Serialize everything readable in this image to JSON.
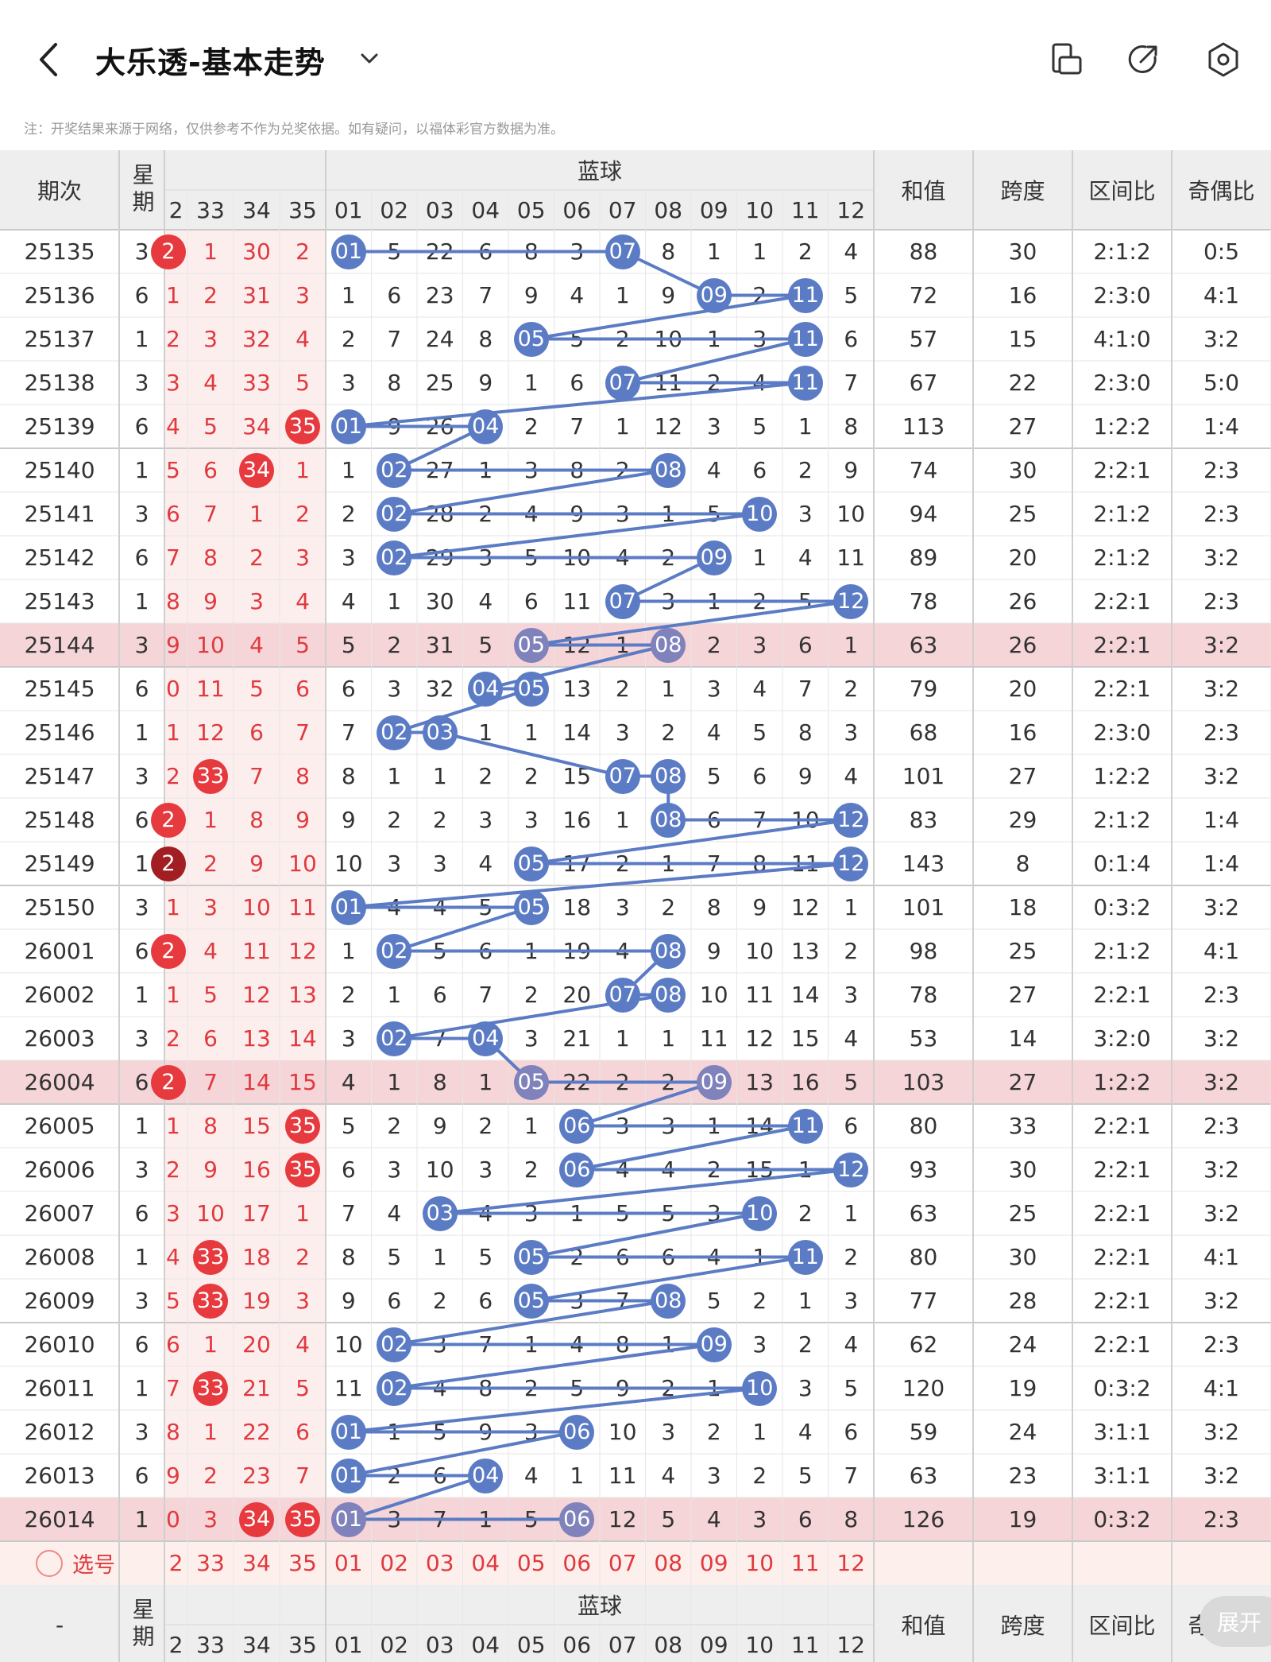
{
  "header": {
    "title": "大乐透-基本走势",
    "notice": "注：开奖结果来源于网络，仅供参考不作为兑奖依据。如有疑问，以福体彩官方数据为准。"
  },
  "columns": {
    "period": "期次",
    "week": "星期",
    "blue_group": "蓝球",
    "sum": "和值",
    "span": "跨度",
    "zone_ratio": "区间比",
    "odd_even": "奇偶比",
    "red_numbers": [
      "2",
      "33",
      "34",
      "35"
    ],
    "blue_numbers": [
      "01",
      "02",
      "03",
      "04",
      "05",
      "06",
      "07",
      "08",
      "09",
      "10",
      "11",
      "12"
    ]
  },
  "rows": [
    {
      "period": "25135",
      "week": "3",
      "red": [
        "2",
        "1",
        "30",
        "2"
      ],
      "redHit": [
        0
      ],
      "blue": [
        "01",
        "5",
        "22",
        "6",
        "8",
        "3",
        "07",
        "8",
        "1",
        "1",
        "2",
        "4"
      ],
      "blueHit": [
        0,
        6
      ],
      "sum": "88",
      "span": "30",
      "zone": "2:1:2",
      "oe": "0:5"
    },
    {
      "period": "25136",
      "week": "6",
      "red": [
        "1",
        "2",
        "31",
        "3"
      ],
      "redHit": [],
      "blue": [
        "1",
        "6",
        "23",
        "7",
        "9",
        "4",
        "1",
        "9",
        "09",
        "2",
        "11",
        "5"
      ],
      "blueHit": [
        8,
        10
      ],
      "sum": "72",
      "span": "16",
      "zone": "2:3:0",
      "oe": "4:1"
    },
    {
      "period": "25137",
      "week": "1",
      "red": [
        "2",
        "3",
        "32",
        "4"
      ],
      "redHit": [],
      "blue": [
        "2",
        "7",
        "24",
        "8",
        "05",
        "5",
        "2",
        "10",
        "1",
        "3",
        "11",
        "6"
      ],
      "blueHit": [
        4,
        10
      ],
      "sum": "57",
      "span": "15",
      "zone": "4:1:0",
      "oe": "3:2"
    },
    {
      "period": "25138",
      "week": "3",
      "red": [
        "3",
        "4",
        "33",
        "5"
      ],
      "redHit": [],
      "blue": [
        "3",
        "8",
        "25",
        "9",
        "1",
        "6",
        "07",
        "11",
        "2",
        "4",
        "11",
        "7"
      ],
      "blueHit": [
        6,
        10
      ],
      "sum": "67",
      "span": "22",
      "zone": "2:3:0",
      "oe": "5:0"
    },
    {
      "period": "25139",
      "week": "6",
      "red": [
        "4",
        "5",
        "34",
        "35"
      ],
      "redHit": [
        3
      ],
      "blue": [
        "01",
        "9",
        "26",
        "04",
        "2",
        "7",
        "1",
        "12",
        "3",
        "5",
        "1",
        "8"
      ],
      "blueHit": [
        0,
        3
      ],
      "sum": "113",
      "span": "27",
      "zone": "1:2:2",
      "oe": "1:4"
    },
    {
      "period": "25140",
      "week": "1",
      "red": [
        "5",
        "6",
        "34",
        "1"
      ],
      "redHit": [
        2
      ],
      "blue": [
        "1",
        "02",
        "27",
        "1",
        "3",
        "8",
        "2",
        "08",
        "4",
        "6",
        "2",
        "9"
      ],
      "blueHit": [
        1,
        7
      ],
      "sum": "74",
      "span": "30",
      "zone": "2:2:1",
      "oe": "2:3"
    },
    {
      "period": "25141",
      "week": "3",
      "red": [
        "6",
        "7",
        "1",
        "2"
      ],
      "redHit": [],
      "blue": [
        "2",
        "02",
        "28",
        "2",
        "4",
        "9",
        "3",
        "1",
        "5",
        "10",
        "3",
        "10"
      ],
      "blueHit": [
        1,
        9
      ],
      "sum": "94",
      "span": "25",
      "zone": "2:1:2",
      "oe": "2:3"
    },
    {
      "period": "25142",
      "week": "6",
      "red": [
        "7",
        "8",
        "2",
        "3"
      ],
      "redHit": [],
      "blue": [
        "3",
        "02",
        "29",
        "3",
        "5",
        "10",
        "4",
        "2",
        "09",
        "1",
        "4",
        "11"
      ],
      "blueHit": [
        1,
        8
      ],
      "sum": "89",
      "span": "20",
      "zone": "2:1:2",
      "oe": "3:2"
    },
    {
      "period": "25143",
      "week": "1",
      "red": [
        "8",
        "9",
        "3",
        "4"
      ],
      "redHit": [],
      "blue": [
        "4",
        "1",
        "30",
        "4",
        "6",
        "11",
        "07",
        "3",
        "1",
        "2",
        "5",
        "12"
      ],
      "blueHit": [
        6,
        11
      ],
      "sum": "78",
      "span": "26",
      "zone": "2:2:1",
      "oe": "2:3"
    },
    {
      "period": "25144",
      "week": "3",
      "red": [
        "9",
        "10",
        "4",
        "5"
      ],
      "redHit": [],
      "blue": [
        "5",
        "2",
        "31",
        "5",
        "05",
        "12",
        "1",
        "08",
        "2",
        "3",
        "6",
        "1"
      ],
      "blueHit": [
        4,
        7
      ],
      "sum": "63",
      "span": "26",
      "zone": "2:2:1",
      "oe": "3:2",
      "hl": true
    },
    {
      "period": "25145",
      "week": "6",
      "red": [
        "0",
        "11",
        "5",
        "6"
      ],
      "redHit": [],
      "blue": [
        "6",
        "3",
        "32",
        "04",
        "05",
        "13",
        "2",
        "1",
        "3",
        "4",
        "7",
        "2"
      ],
      "blueHit": [
        3,
        4
      ],
      "sum": "79",
      "span": "20",
      "zone": "2:2:1",
      "oe": "3:2"
    },
    {
      "period": "25146",
      "week": "1",
      "red": [
        "1",
        "12",
        "6",
        "7"
      ],
      "redHit": [],
      "blue": [
        "7",
        "02",
        "03",
        "1",
        "1",
        "14",
        "3",
        "2",
        "4",
        "5",
        "8",
        "3"
      ],
      "blueHit": [
        1,
        2
      ],
      "sum": "68",
      "span": "16",
      "zone": "2:3:0",
      "oe": "2:3"
    },
    {
      "period": "25147",
      "week": "3",
      "red": [
        "2",
        "33",
        "7",
        "8"
      ],
      "redHit": [
        1
      ],
      "blue": [
        "8",
        "1",
        "1",
        "2",
        "2",
        "15",
        "07",
        "08",
        "5",
        "6",
        "9",
        "4"
      ],
      "blueHit": [
        6,
        7
      ],
      "sum": "101",
      "span": "27",
      "zone": "1:2:2",
      "oe": "3:2"
    },
    {
      "period": "25148",
      "week": "6",
      "red": [
        "2",
        "1",
        "8",
        "9"
      ],
      "redHit": [
        0
      ],
      "blue": [
        "9",
        "2",
        "2",
        "3",
        "3",
        "16",
        "1",
        "08",
        "6",
        "7",
        "10",
        "12"
      ],
      "blueHit": [
        7,
        11
      ],
      "sum": "83",
      "span": "29",
      "zone": "2:1:2",
      "oe": "1:4"
    },
    {
      "period": "25149",
      "week": "1",
      "red": [
        "2",
        "2",
        "9",
        "10"
      ],
      "redHit": [
        0
      ],
      "redDark": true,
      "blue": [
        "10",
        "3",
        "3",
        "4",
        "05",
        "17",
        "2",
        "1",
        "7",
        "8",
        "11",
        "12"
      ],
      "blueHit": [
        4,
        11
      ],
      "sum": "143",
      "span": "8",
      "zone": "0:1:4",
      "oe": "1:4"
    },
    {
      "period": "25150",
      "week": "3",
      "red": [
        "1",
        "3",
        "10",
        "11"
      ],
      "redHit": [],
      "blue": [
        "01",
        "4",
        "4",
        "5",
        "05",
        "18",
        "3",
        "2",
        "8",
        "9",
        "12",
        "1"
      ],
      "blueHit": [
        0,
        4
      ],
      "sum": "101",
      "span": "18",
      "zone": "0:3:2",
      "oe": "3:2"
    },
    {
      "period": "26001",
      "week": "6",
      "red": [
        "2",
        "4",
        "11",
        "12"
      ],
      "redHit": [
        0
      ],
      "blue": [
        "1",
        "02",
        "5",
        "6",
        "1",
        "19",
        "4",
        "08",
        "9",
        "10",
        "13",
        "2"
      ],
      "blueHit": [
        1,
        7
      ],
      "sum": "98",
      "span": "25",
      "zone": "2:1:2",
      "oe": "4:1"
    },
    {
      "period": "26002",
      "week": "1",
      "red": [
        "1",
        "5",
        "12",
        "13"
      ],
      "redHit": [],
      "blue": [
        "2",
        "1",
        "6",
        "7",
        "2",
        "20",
        "07",
        "08",
        "10",
        "11",
        "14",
        "3"
      ],
      "blueHit": [
        6,
        7
      ],
      "sum": "78",
      "span": "27",
      "zone": "2:2:1",
      "oe": "2:3"
    },
    {
      "period": "26003",
      "week": "3",
      "red": [
        "2",
        "6",
        "13",
        "14"
      ],
      "redHit": [],
      "blue": [
        "3",
        "02",
        "7",
        "04",
        "3",
        "21",
        "1",
        "1",
        "11",
        "12",
        "15",
        "4"
      ],
      "blueHit": [
        1,
        3
      ],
      "sum": "53",
      "span": "14",
      "zone": "3:2:0",
      "oe": "3:2"
    },
    {
      "period": "26004",
      "week": "6",
      "red": [
        "2",
        "7",
        "14",
        "15"
      ],
      "redHit": [
        0
      ],
      "blue": [
        "4",
        "1",
        "8",
        "1",
        "05",
        "22",
        "2",
        "2",
        "09",
        "13",
        "16",
        "5"
      ],
      "blueHit": [
        4,
        8
      ],
      "sum": "103",
      "span": "27",
      "zone": "1:2:2",
      "oe": "3:2",
      "hl": true
    },
    {
      "period": "26005",
      "week": "1",
      "red": [
        "1",
        "8",
        "15",
        "35"
      ],
      "redHit": [
        3
      ],
      "blue": [
        "5",
        "2",
        "9",
        "2",
        "1",
        "06",
        "3",
        "3",
        "1",
        "14",
        "11",
        "6"
      ],
      "blueHit": [
        5,
        10
      ],
      "sum": "80",
      "span": "33",
      "zone": "2:2:1",
      "oe": "2:3"
    },
    {
      "period": "26006",
      "week": "3",
      "red": [
        "2",
        "9",
        "16",
        "35"
      ],
      "redHit": [
        3
      ],
      "blue": [
        "6",
        "3",
        "10",
        "3",
        "2",
        "06",
        "4",
        "4",
        "2",
        "15",
        "1",
        "12"
      ],
      "blueHit": [
        5,
        11
      ],
      "sum": "93",
      "span": "30",
      "zone": "2:2:1",
      "oe": "3:2"
    },
    {
      "period": "26007",
      "week": "6",
      "red": [
        "3",
        "10",
        "17",
        "1"
      ],
      "redHit": [],
      "blue": [
        "7",
        "4",
        "03",
        "4",
        "3",
        "1",
        "5",
        "5",
        "3",
        "10",
        "2",
        "1"
      ],
      "blueHit": [
        2,
        9
      ],
      "sum": "63",
      "span": "25",
      "zone": "2:2:1",
      "oe": "3:2"
    },
    {
      "period": "26008",
      "week": "1",
      "red": [
        "4",
        "33",
        "18",
        "2"
      ],
      "redHit": [
        1
      ],
      "blue": [
        "8",
        "5",
        "1",
        "5",
        "05",
        "2",
        "6",
        "6",
        "4",
        "1",
        "11",
        "2"
      ],
      "blueHit": [
        4,
        10
      ],
      "sum": "80",
      "span": "30",
      "zone": "2:2:1",
      "oe": "4:1"
    },
    {
      "period": "26009",
      "week": "3",
      "red": [
        "5",
        "33",
        "19",
        "3"
      ],
      "redHit": [
        1
      ],
      "blue": [
        "9",
        "6",
        "2",
        "6",
        "05",
        "3",
        "7",
        "08",
        "5",
        "2",
        "1",
        "3"
      ],
      "blueHit": [
        4,
        7
      ],
      "sum": "77",
      "span": "28",
      "zone": "2:2:1",
      "oe": "3:2"
    },
    {
      "period": "26010",
      "week": "6",
      "red": [
        "6",
        "1",
        "20",
        "4"
      ],
      "redHit": [],
      "blue": [
        "10",
        "02",
        "3",
        "7",
        "1",
        "4",
        "8",
        "1",
        "09",
        "3",
        "2",
        "4"
      ],
      "blueHit": [
        1,
        8
      ],
      "sum": "62",
      "span": "24",
      "zone": "2:2:1",
      "oe": "2:3"
    },
    {
      "period": "26011",
      "week": "1",
      "red": [
        "7",
        "33",
        "21",
        "5"
      ],
      "redHit": [
        1
      ],
      "blue": [
        "11",
        "02",
        "4",
        "8",
        "2",
        "5",
        "9",
        "2",
        "1",
        "10",
        "3",
        "5"
      ],
      "blueHit": [
        1,
        9
      ],
      "sum": "120",
      "span": "19",
      "zone": "0:3:2",
      "oe": "4:1"
    },
    {
      "period": "26012",
      "week": "3",
      "red": [
        "8",
        "1",
        "22",
        "6"
      ],
      "redHit": [],
      "blue": [
        "01",
        "1",
        "5",
        "9",
        "3",
        "06",
        "10",
        "3",
        "2",
        "1",
        "4",
        "6"
      ],
      "blueHit": [
        0,
        5
      ],
      "sum": "59",
      "span": "24",
      "zone": "3:1:1",
      "oe": "3:2"
    },
    {
      "period": "26013",
      "week": "6",
      "red": [
        "9",
        "2",
        "23",
        "7"
      ],
      "redHit": [],
      "blue": [
        "01",
        "2",
        "6",
        "04",
        "4",
        "1",
        "11",
        "4",
        "3",
        "2",
        "5",
        "7"
      ],
      "blueHit": [
        0,
        3
      ],
      "sum": "63",
      "span": "23",
      "zone": "3:1:1",
      "oe": "3:2"
    },
    {
      "period": "26014",
      "week": "1",
      "red": [
        "0",
        "3",
        "34",
        "35"
      ],
      "redHit": [
        2,
        3
      ],
      "blue": [
        "01",
        "3",
        "7",
        "1",
        "5",
        "06",
        "12",
        "5",
        "4",
        "3",
        "6",
        "8"
      ],
      "blueHit": [
        0,
        5
      ],
      "sum": "126",
      "span": "19",
      "zone": "0:3:2",
      "oe": "2:3",
      "hl": true
    }
  ],
  "pick_label": "选号",
  "footer_dash": "-",
  "expand_label": "展开",
  "colors": {
    "blue_ball": "#5b7bc4",
    "red_ball": "#e63a3f",
    "highlight_row": "#f5d5d8",
    "red_col_bg": "#fdeeee"
  }
}
